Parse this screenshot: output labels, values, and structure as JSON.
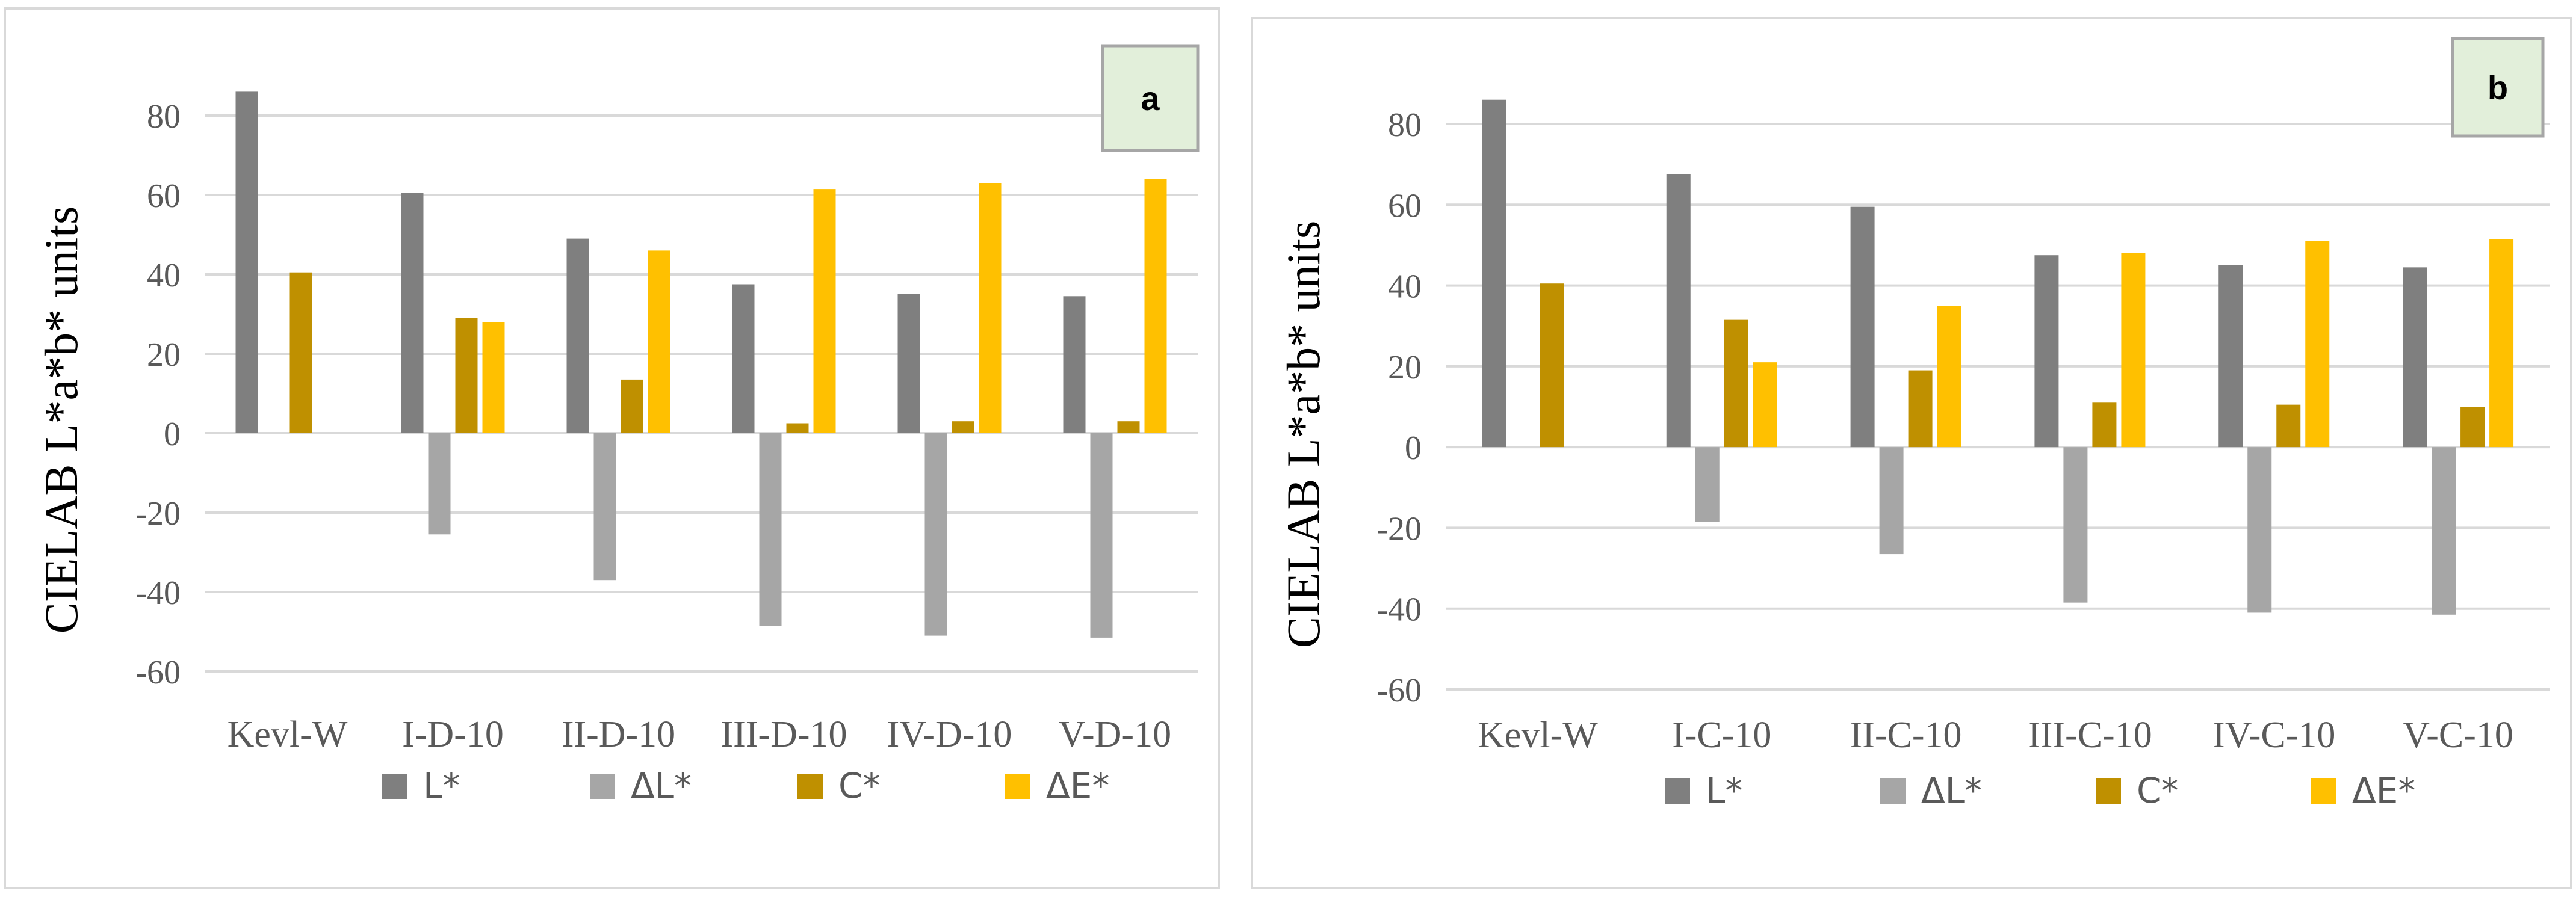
{
  "colors": {
    "L": "#7f7f7f",
    "dL": "#a6a6a6",
    "C": "#bf9000",
    "dE": "#ffc000",
    "grid": "#d9d9d9",
    "badge_fill": "#e2efda",
    "badge_border": "#a6a6a6"
  },
  "chart_data": [
    {
      "type": "bar",
      "panel_label": "a",
      "ylabel": "CIELAB L*a*b* units",
      "ylim": [
        -60,
        80
      ],
      "yticks": [
        80,
        60,
        40,
        20,
        0,
        -20,
        -40,
        -60
      ],
      "legend_position": "bottom",
      "categories": [
        "Kevl-W",
        "I-D-10",
        "II-D-10",
        "III-D-10",
        "IV-D-10",
        "V-D-10"
      ],
      "series": [
        {
          "name": "L*",
          "key": "L",
          "values": [
            86,
            60.5,
            49,
            37.5,
            35,
            34.5
          ]
        },
        {
          "name": "ΔL*",
          "key": "dL",
          "values": [
            null,
            -25.5,
            -37,
            -48.5,
            -51,
            -51.5
          ]
        },
        {
          "name": "C*",
          "key": "C",
          "values": [
            40.5,
            29,
            13.5,
            2.5,
            3,
            3
          ]
        },
        {
          "name": "ΔE*",
          "key": "dE",
          "values": [
            null,
            28,
            46,
            61.5,
            63,
            64
          ]
        }
      ]
    },
    {
      "type": "bar",
      "panel_label": "b",
      "ylabel": "CIELAB L*a*b* units",
      "ylim": [
        -60,
        80
      ],
      "yticks": [
        80,
        60,
        40,
        20,
        0,
        -20,
        -40,
        -60
      ],
      "legend_position": "bottom",
      "categories": [
        "Kevl-W",
        "I-C-10",
        "II-C-10",
        "III-C-10",
        "IV-C-10",
        "V-C-10"
      ],
      "series": [
        {
          "name": "L*",
          "key": "L",
          "values": [
            86,
            67.5,
            59.5,
            47.5,
            45,
            44.5
          ]
        },
        {
          "name": "ΔL*",
          "key": "dL",
          "values": [
            null,
            -18.5,
            -26.5,
            -38.5,
            -41,
            -41.5
          ]
        },
        {
          "name": "C*",
          "key": "C",
          "values": [
            40.5,
            31.5,
            19,
            11,
            10.5,
            10
          ]
        },
        {
          "name": "ΔE*",
          "key": "dE",
          "values": [
            null,
            21,
            35,
            48,
            51,
            51.5
          ]
        }
      ]
    }
  ]
}
